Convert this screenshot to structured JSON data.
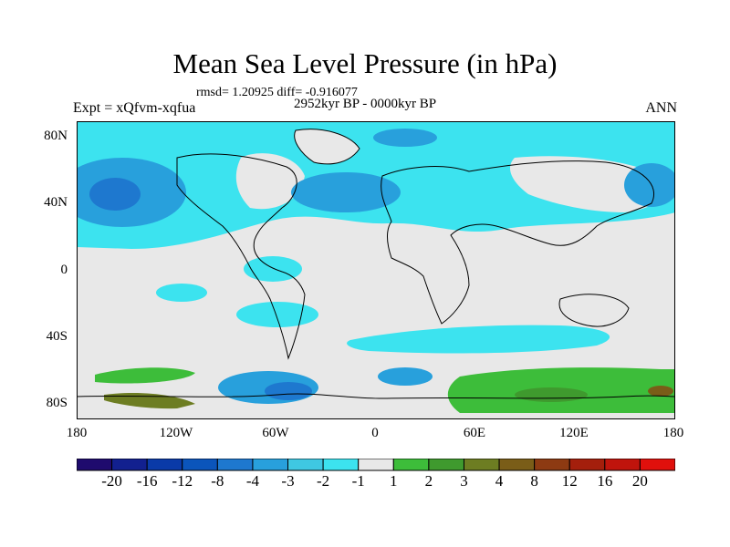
{
  "title": "Mean Sea Level Pressure (in hPa)",
  "stats": "rmsd= 1.20925 diff= -0.916077",
  "period": "2952kyr BP - 0000kyr BP",
  "experiment": "Expt = xQfvm-xqfua",
  "season": "ANN",
  "lat_labels": [
    "80N",
    "40N",
    "0",
    "40S",
    "80S"
  ],
  "lon_labels": [
    "180",
    "120W",
    "60W",
    "0",
    "60E",
    "120E",
    "180"
  ],
  "colorbar": {
    "colors": [
      "#1f0b6e",
      "#12208f",
      "#0a3aa8",
      "#0b55bb",
      "#1e78cf",
      "#28a0dc",
      "#3fc8e2",
      "#3ce3ef",
      "#e8e8e8",
      "#3dbd3a",
      "#3f9a2e",
      "#6d7d22",
      "#7a5d18",
      "#8d3a12",
      "#a41f0c",
      "#c0140c",
      "#e0100c"
    ],
    "labels": [
      "-20",
      "-16",
      "-12",
      "-8",
      "-4",
      "-3",
      "-2",
      "-1",
      "1",
      "2",
      "3",
      "4",
      "8",
      "12",
      "16",
      "20"
    ]
  }
}
